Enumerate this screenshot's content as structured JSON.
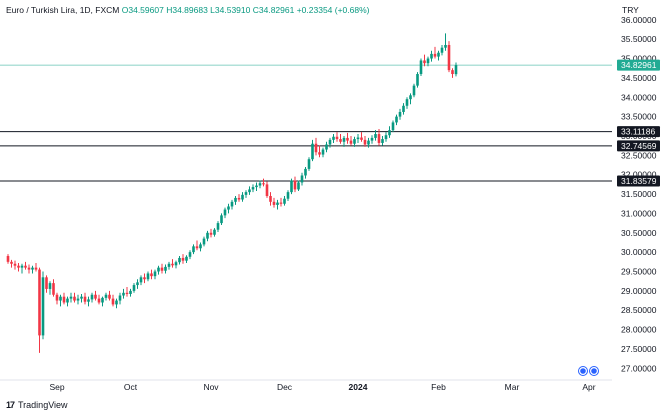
{
  "header": {
    "symbol": "Euro / Turkish Lira, 1D, FXCM",
    "open": "O34.59607",
    "high": "H34.89683",
    "low": "L34.53910",
    "close": "C34.82961",
    "change": "+0.23354 (+0.68%)",
    "currency": "TRY"
  },
  "branding": {
    "logo_text": "TradingView",
    "logo_mark": "17"
  },
  "colors": {
    "up": "#089981",
    "down": "#f23645",
    "current": "#22ab94",
    "level": "#131722",
    "event": "#2962ff"
  },
  "chart_data": {
    "type": "candlestick",
    "title": "Euro / Turkish Lira, 1D, FXCM",
    "y_axis": {
      "min": 26.75,
      "max": 36.15,
      "ticks": [
        "27.00000",
        "27.50000",
        "28.00000",
        "28.50000",
        "29.00000",
        "29.50000",
        "30.00000",
        "30.50000",
        "31.00000",
        "31.50000",
        "32.00000",
        "32.50000",
        "33.00000",
        "33.50000",
        "34.00000",
        "34.50000",
        "35.00000",
        "35.50000",
        "36.00000"
      ]
    },
    "x_axis": {
      "labels": [
        {
          "label": "Sep",
          "idx": 14
        },
        {
          "label": "Oct",
          "idx": 35
        },
        {
          "label": "Nov",
          "idx": 58
        },
        {
          "label": "Dec",
          "idx": 79
        },
        {
          "label": "2024",
          "idx": 100
        },
        {
          "label": "Feb",
          "idx": 123
        },
        {
          "label": "Mar",
          "idx": 144
        },
        {
          "label": "Apr",
          "idx": 166
        }
      ]
    },
    "horizontal_levels": [
      33.11186,
      32.74569,
      31.83579
    ],
    "current_price": 34.82961,
    "last_close": 34.82961,
    "events_count": 2,
    "candles": [
      [
        29.9,
        29.95,
        29.7,
        29.75
      ],
      [
        29.75,
        29.8,
        29.6,
        29.7
      ],
      [
        29.7,
        29.78,
        29.55,
        29.65
      ],
      [
        29.65,
        29.72,
        29.5,
        29.6
      ],
      [
        29.6,
        29.7,
        29.45,
        29.65
      ],
      [
        29.65,
        29.75,
        29.55,
        29.6
      ],
      [
        29.6,
        29.68,
        29.45,
        29.55
      ],
      [
        29.55,
        29.65,
        29.45,
        29.6
      ],
      [
        29.6,
        29.72,
        29.5,
        29.55
      ],
      [
        29.55,
        29.6,
        27.4,
        27.85
      ],
      [
        27.85,
        29.5,
        27.75,
        29.35
      ],
      [
        29.35,
        29.4,
        28.95,
        29.05
      ],
      [
        29.05,
        29.25,
        28.9,
        29.2
      ],
      [
        29.2,
        29.3,
        28.85,
        28.9
      ],
      [
        28.9,
        28.95,
        28.65,
        28.75
      ],
      [
        28.75,
        28.9,
        28.6,
        28.85
      ],
      [
        28.85,
        28.95,
        28.65,
        28.7
      ],
      [
        28.7,
        28.85,
        28.6,
        28.8
      ],
      [
        28.8,
        28.95,
        28.7,
        28.85
      ],
      [
        28.85,
        28.95,
        28.7,
        28.75
      ],
      [
        28.75,
        28.9,
        28.65,
        28.8
      ],
      [
        28.8,
        28.92,
        28.7,
        28.85
      ],
      [
        28.85,
        28.95,
        28.65,
        28.72
      ],
      [
        28.72,
        28.85,
        28.6,
        28.78
      ],
      [
        28.78,
        28.95,
        28.7,
        28.9
      ],
      [
        28.9,
        29.0,
        28.75,
        28.8
      ],
      [
        28.8,
        28.9,
        28.65,
        28.7
      ],
      [
        28.7,
        28.85,
        28.6,
        28.82
      ],
      [
        28.82,
        28.95,
        28.75,
        28.9
      ],
      [
        28.9,
        29.0,
        28.75,
        28.8
      ],
      [
        28.8,
        28.9,
        28.6,
        28.65
      ],
      [
        28.65,
        28.8,
        28.55,
        28.75
      ],
      [
        28.75,
        28.95,
        28.65,
        28.88
      ],
      [
        28.88,
        29.05,
        28.8,
        28.95
      ],
      [
        28.95,
        29.1,
        28.85,
        28.92
      ],
      [
        28.92,
        29.05,
        28.85,
        29.0
      ],
      [
        29.0,
        29.2,
        28.95,
        29.15
      ],
      [
        29.15,
        29.3,
        29.05,
        29.22
      ],
      [
        29.22,
        29.4,
        29.15,
        29.35
      ],
      [
        29.35,
        29.45,
        29.2,
        29.3
      ],
      [
        29.3,
        29.5,
        29.25,
        29.45
      ],
      [
        29.45,
        29.55,
        29.3,
        29.38
      ],
      [
        29.38,
        29.55,
        29.3,
        29.5
      ],
      [
        29.5,
        29.65,
        29.42,
        29.6
      ],
      [
        29.6,
        29.7,
        29.45,
        29.52
      ],
      [
        29.52,
        29.68,
        29.45,
        29.62
      ],
      [
        29.62,
        29.75,
        29.55,
        29.7
      ],
      [
        29.7,
        29.82,
        29.6,
        29.66
      ],
      [
        29.66,
        29.78,
        29.58,
        29.74
      ],
      [
        29.74,
        29.9,
        29.68,
        29.85
      ],
      [
        29.85,
        29.95,
        29.7,
        29.78
      ],
      [
        29.78,
        29.92,
        29.72,
        29.88
      ],
      [
        29.88,
        30.05,
        29.82,
        30.0
      ],
      [
        30.0,
        30.2,
        29.95,
        30.15
      ],
      [
        30.15,
        30.3,
        30.05,
        30.1
      ],
      [
        30.1,
        30.25,
        30.02,
        30.2
      ],
      [
        30.2,
        30.4,
        30.15,
        30.35
      ],
      [
        30.35,
        30.55,
        30.28,
        30.5
      ],
      [
        30.5,
        30.6,
        30.38,
        30.45
      ],
      [
        30.45,
        30.62,
        30.4,
        30.58
      ],
      [
        30.58,
        30.8,
        30.52,
        30.75
      ],
      [
        30.75,
        31.0,
        30.7,
        30.95
      ],
      [
        30.95,
        31.15,
        30.88,
        31.1
      ],
      [
        31.1,
        31.25,
        31.0,
        31.18
      ],
      [
        31.18,
        31.35,
        31.1,
        31.3
      ],
      [
        31.3,
        31.45,
        31.22,
        31.4
      ],
      [
        31.4,
        31.5,
        31.3,
        31.36
      ],
      [
        31.36,
        31.55,
        31.3,
        31.48
      ],
      [
        31.48,
        31.6,
        31.4,
        31.55
      ],
      [
        31.55,
        31.7,
        31.48,
        31.62
      ],
      [
        31.62,
        31.75,
        31.55,
        31.68
      ],
      [
        31.68,
        31.8,
        31.58,
        31.72
      ],
      [
        31.72,
        31.85,
        31.65,
        31.78
      ],
      [
        31.78,
        31.9,
        31.7,
        31.75
      ],
      [
        31.75,
        31.82,
        31.4,
        31.45
      ],
      [
        31.45,
        31.55,
        31.2,
        31.3
      ],
      [
        31.3,
        31.4,
        31.15,
        31.22
      ],
      [
        31.22,
        31.35,
        31.1,
        31.28
      ],
      [
        31.28,
        31.4,
        31.18,
        31.25
      ],
      [
        31.25,
        31.45,
        31.2,
        31.38
      ],
      [
        31.38,
        31.6,
        31.32,
        31.55
      ],
      [
        31.55,
        31.9,
        31.5,
        31.85
      ],
      [
        31.85,
        31.95,
        31.55,
        31.62
      ],
      [
        31.62,
        31.85,
        31.58,
        31.8
      ],
      [
        31.8,
        32.05,
        31.72,
        31.98
      ],
      [
        31.98,
        32.2,
        31.9,
        32.15
      ],
      [
        32.15,
        32.45,
        32.1,
        32.4
      ],
      [
        32.4,
        32.9,
        32.35,
        32.8
      ],
      [
        32.8,
        32.95,
        32.5,
        32.58
      ],
      [
        32.58,
        32.75,
        32.45,
        32.52
      ],
      [
        32.52,
        32.7,
        32.45,
        32.65
      ],
      [
        32.65,
        32.85,
        32.58,
        32.78
      ],
      [
        32.78,
        32.95,
        32.7,
        32.9
      ],
      [
        32.9,
        33.05,
        32.82,
        32.98
      ],
      [
        32.98,
        33.1,
        32.85,
        32.92
      ],
      [
        32.92,
        33.05,
        32.8,
        32.85
      ],
      [
        32.85,
        33.0,
        32.72,
        32.95
      ],
      [
        32.95,
        33.08,
        32.8,
        32.88
      ],
      [
        32.88,
        33.0,
        32.75,
        32.8
      ],
      [
        32.8,
        32.98,
        32.72,
        32.92
      ],
      [
        32.92,
        33.05,
        32.82,
        32.96
      ],
      [
        32.96,
        33.1,
        32.85,
        32.9
      ],
      [
        32.9,
        33.0,
        32.72,
        32.78
      ],
      [
        32.78,
        32.95,
        32.7,
        32.88
      ],
      [
        32.88,
        33.02,
        32.8,
        32.95
      ],
      [
        32.95,
        33.15,
        32.88,
        33.05
      ],
      [
        33.05,
        33.18,
        32.75,
        32.82
      ],
      [
        32.82,
        33.0,
        32.75,
        32.92
      ],
      [
        32.92,
        33.1,
        32.85,
        33.02
      ],
      [
        33.02,
        33.25,
        32.95,
        33.15
      ],
      [
        33.15,
        33.4,
        33.1,
        33.35
      ],
      [
        33.35,
        33.55,
        33.28,
        33.5
      ],
      [
        33.5,
        33.7,
        33.42,
        33.62
      ],
      [
        33.62,
        33.85,
        33.55,
        33.78
      ],
      [
        33.78,
        34.0,
        33.7,
        33.95
      ],
      [
        33.95,
        34.1,
        33.82,
        34.05
      ],
      [
        34.05,
        34.35,
        34.0,
        34.3
      ],
      [
        34.3,
        34.65,
        34.25,
        34.6
      ],
      [
        34.6,
        35.0,
        34.55,
        34.95
      ],
      [
        34.95,
        35.1,
        34.8,
        34.88
      ],
      [
        34.88,
        35.05,
        34.8,
        35.0
      ],
      [
        35.0,
        35.2,
        34.92,
        35.12
      ],
      [
        35.12,
        35.3,
        35.0,
        35.05
      ],
      [
        35.05,
        35.2,
        34.95,
        35.15
      ],
      [
        35.15,
        35.35,
        35.08,
        35.28
      ],
      [
        35.28,
        35.65,
        35.2,
        35.35
      ],
      [
        35.35,
        35.45,
        34.65,
        34.7
      ],
      [
        34.7,
        34.75,
        34.5,
        34.6
      ],
      [
        34.59607,
        34.89683,
        34.5391,
        34.82961
      ]
    ]
  }
}
